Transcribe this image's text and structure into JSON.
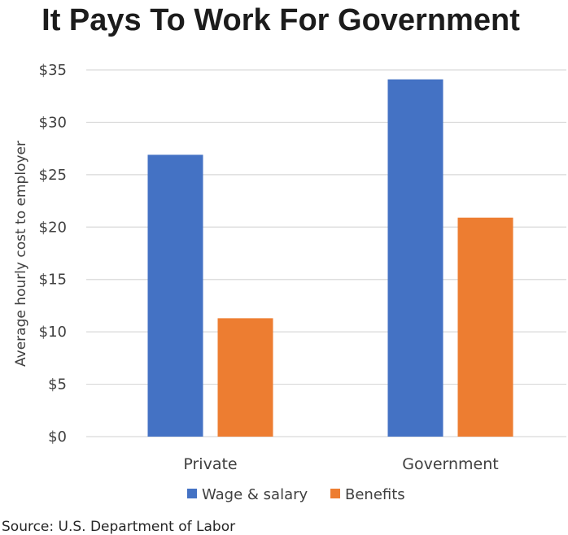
{
  "chart_data": {
    "type": "bar",
    "title": "It Pays To Work For Government",
    "xlabel": "",
    "ylabel": "Average hourly cost to employer",
    "categories": [
      "Private",
      "Government"
    ],
    "series": [
      {
        "name": "Wage & salary",
        "values": [
          26.9,
          34.1
        ],
        "color": "#4472C4"
      },
      {
        "name": "Benefits",
        "values": [
          11.3,
          20.9
        ],
        "color": "#ED7D31"
      }
    ],
    "ylim": [
      0,
      35
    ],
    "yticks": [
      0,
      5,
      10,
      15,
      20,
      25,
      30,
      35
    ],
    "ytick_labels": [
      "$0",
      "$5",
      "$10",
      "$15",
      "$20",
      "$25",
      "$30",
      "$35"
    ],
    "grid": true,
    "legend_position": "bottom",
    "source": "Source: U.S. Department of Labor"
  }
}
